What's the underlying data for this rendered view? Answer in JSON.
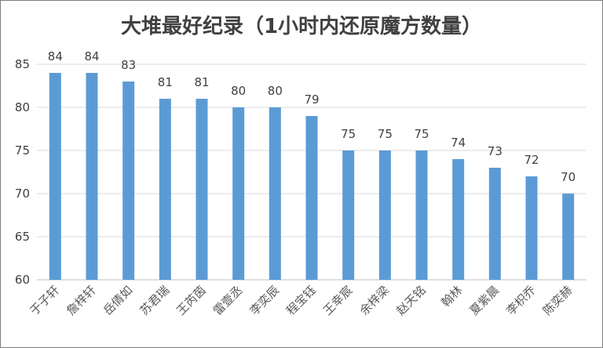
{
  "chart_data": {
    "type": "bar",
    "title": "大堆最好纪录（1小时内还原魔方数量）",
    "xlabel": "",
    "ylabel": "",
    "ylim": [
      60,
      85
    ],
    "yticks": [
      60,
      65,
      70,
      75,
      80,
      85
    ],
    "grid": true,
    "legend": "none",
    "bar_color": "#5b9bd5",
    "categories": [
      "于子轩",
      "詹梓轩",
      "岳倩如",
      "苏君瑞",
      "王芮茵",
      "雷壹丞",
      "李奕辰",
      "程宝钰",
      "王幸宸",
      "余梓梁",
      "赵天铭",
      "翰林",
      "夏紫晨",
      "李枳乔",
      "陈奕赫"
    ],
    "values": [
      84,
      84,
      83,
      81,
      81,
      80,
      80,
      79,
      75,
      75,
      75,
      74,
      73,
      72,
      70
    ]
  }
}
